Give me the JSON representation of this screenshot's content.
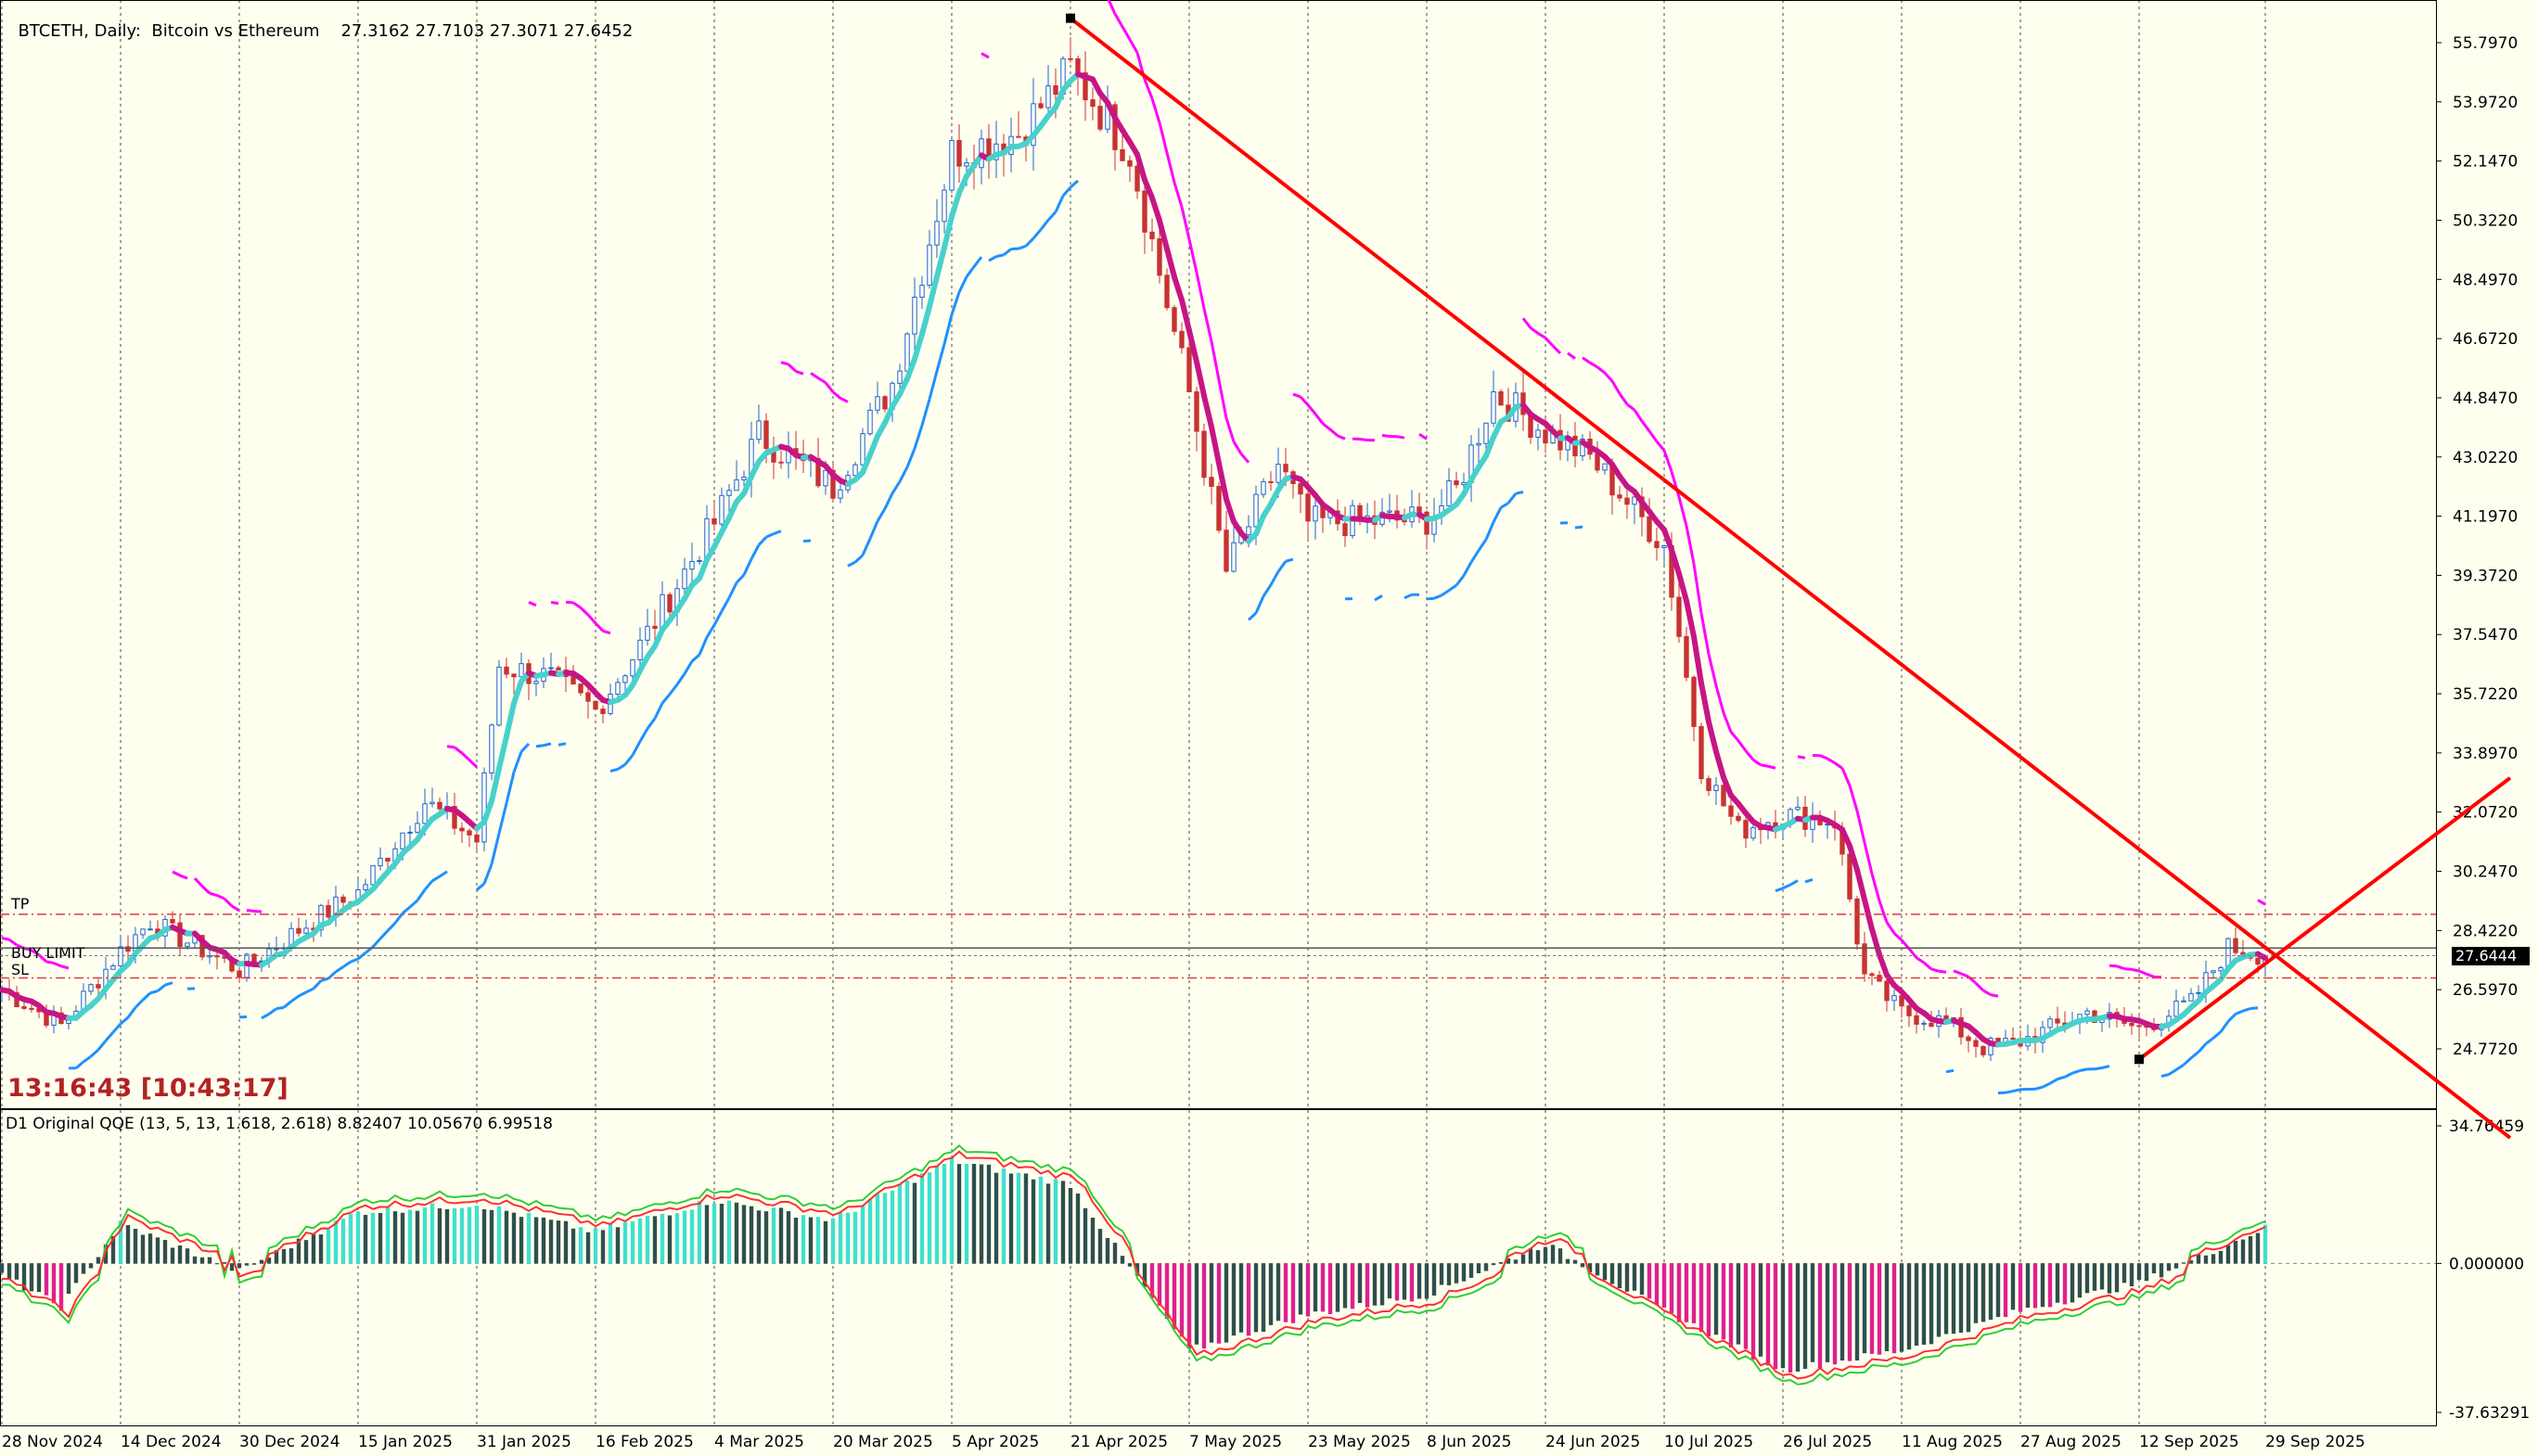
{
  "header": {
    "symbol_title": "BTCETH, Daily:  Bitcoin vs Ethereum",
    "ohlc": "27.3162 27.7103 27.3071 27.6452"
  },
  "timer": "13:16:43 [10:43:17]",
  "levels": {
    "tp_label": "TP",
    "buy_limit_label": "BUY LIMIT",
    "sl_label": "SL",
    "current_price_label": "27.6444"
  },
  "indicator": {
    "title": "D1 Original QQE (13, 5, 13, 1.618, 2.618) 8.82407 10.05670 6.99518"
  },
  "colors": {
    "background": "#fffff0",
    "grid": "#4a4a4a",
    "trendline": "#ff0000",
    "supertrend_up": "#1e90ff",
    "supertrend_down": "#ff00ff",
    "ma_bull": "#48d1cc",
    "ma_bear": "#c71585",
    "candle_bull": "#1e64c8",
    "candle_bear": "#c83232",
    "qqe_pos": "#40e0d0",
    "qqe_neg": "#e0208f",
    "qqe_neutral": "#2f4f4f",
    "qqe_line1": "#32cd32",
    "qqe_line2": "#ff3030",
    "level_line": "#dc3c3c",
    "current_price_box": "#000000"
  },
  "chart_data": [
    {
      "type": "candlestick",
      "title": "BTCETH, Daily: Bitcoin vs Ethereum",
      "price_axis_ticks": [
        "55.7970",
        "53.9720",
        "52.1470",
        "50.3220",
        "48.4970",
        "46.6720",
        "44.8470",
        "43.0220",
        "41.1970",
        "39.3720",
        "37.5470",
        "35.7220",
        "33.8970",
        "32.0720",
        "30.2470",
        "28.4220",
        "26.5970",
        "24.7720"
      ],
      "date_axis_ticks": [
        "28 Nov 2024",
        "14 Dec 2024",
        "30 Dec 2024",
        "15 Jan 2025",
        "31 Jan 2025",
        "16 Feb 2025",
        "4 Mar 2025",
        "20 Mar 2025",
        "5 Apr 2025",
        "21 Apr 2025",
        "7 May 2025",
        "23 May 2025",
        "8 Jun 2025",
        "24 Jun 2025",
        "10 Jul 2025",
        "26 Jul 2025",
        "11 Aug 2025",
        "27 Aug 2025",
        "12 Sep 2025",
        "29 Sep 2025"
      ],
      "ylim": [
        23.3,
        57.0
      ],
      "close_series": [
        {
          "date": "28 Nov 2024",
          "close": 26.6
        },
        {
          "date": "6 Dec 2024",
          "close": 25.5
        },
        {
          "date": "14 Dec 2024",
          "close": 27.8
        },
        {
          "date": "18 Dec 2024",
          "close": 28.7
        },
        {
          "date": "30 Dec 2024",
          "close": 27.2
        },
        {
          "date": "8 Jan 2025",
          "close": 28.6
        },
        {
          "date": "15 Jan 2025",
          "close": 29.6
        },
        {
          "date": "24 Jan 2025",
          "close": 32.4
        },
        {
          "date": "31 Jan 2025",
          "close": 31.2
        },
        {
          "date": "3 Feb 2025",
          "close": 36.6
        },
        {
          "date": "10 Feb 2025",
          "close": 36.2
        },
        {
          "date": "16 Feb 2025",
          "close": 35.2
        },
        {
          "date": "22 Feb 2025",
          "close": 37.2
        },
        {
          "date": "4 Mar 2025",
          "close": 41.0
        },
        {
          "date": "10 Mar 2025",
          "close": 43.7
        },
        {
          "date": "20 Mar 2025",
          "close": 42.1
        },
        {
          "date": "28 Mar 2025",
          "close": 45.3
        },
        {
          "date": "5 Apr 2025",
          "close": 52.4
        },
        {
          "date": "14 Apr 2025",
          "close": 53.0
        },
        {
          "date": "21 Apr 2025",
          "close": 55.0
        },
        {
          "date": "29 Apr 2025",
          "close": 52.4
        },
        {
          "date": "7 May 2025",
          "close": 45.0
        },
        {
          "date": "12 May 2025",
          "close": 39.5
        },
        {
          "date": "19 May 2025",
          "close": 42.8
        },
        {
          "date": "23 May 2025",
          "close": 41.0
        },
        {
          "date": "8 Jun 2025",
          "close": 41.1
        },
        {
          "date": "12 Jun 2025",
          "close": 42.0
        },
        {
          "date": "17 Jun 2025",
          "close": 45.0
        },
        {
          "date": "24 Jun 2025",
          "close": 43.8
        },
        {
          "date": "30 Jun 2025",
          "close": 43.0
        },
        {
          "date": "10 Jul 2025",
          "close": 40.3
        },
        {
          "date": "15 Jul 2025",
          "close": 33.5
        },
        {
          "date": "20 Jul 2025",
          "close": 31.5
        },
        {
          "date": "26 Jul 2025",
          "close": 32.0
        },
        {
          "date": "2 Aug 2025",
          "close": 31.8
        },
        {
          "date": "6 Aug 2025",
          "close": 27.0
        },
        {
          "date": "11 Aug 2025",
          "close": 25.9
        },
        {
          "date": "17 Aug 2025",
          "close": 25.6
        },
        {
          "date": "22 Aug 2025",
          "close": 24.8
        },
        {
          "date": "27 Aug 2025",
          "close": 25.0
        },
        {
          "date": "5 Sep 2025",
          "close": 25.9
        },
        {
          "date": "12 Sep 2025",
          "close": 25.4
        },
        {
          "date": "19 Sep 2025",
          "close": 26.2
        },
        {
          "date": "24 Sep 2025",
          "close": 27.9
        },
        {
          "date": "29 Sep 2025",
          "close": 27.6452
        }
      ],
      "overlays": {
        "tp": 28.92,
        "buy_limit": 27.88,
        "sl": 26.96,
        "current_price": 27.6444,
        "descending_trendline": [
          {
            "date": "21 Apr 2025",
            "price": 56.55
          },
          {
            "date": "29 Sep 2025",
            "price": 27.9
          }
        ],
        "ascending_trendline": [
          {
            "date": "12 Sep 2025",
            "price": 24.45
          },
          {
            "date": "29 Sep 2025",
            "price": 27.4
          }
        ]
      }
    },
    {
      "type": "histogram",
      "title": "D1 Original QQE (13, 5, 13, 1.618, 2.618) 8.82407 10.05670 6.99518",
      "axis_ticks": [
        "34.76459",
        "0.000000",
        "-37.63291"
      ],
      "ylim": [
        -37.63291,
        34.76459
      ],
      "series_values": [
        {
          "date": "28 Nov 2024",
          "value": -3
        },
        {
          "date": "6 Dec 2024",
          "value": -11
        },
        {
          "date": "14 Dec 2024",
          "value": 10
        },
        {
          "date": "30 Dec 2024",
          "value": -2
        },
        {
          "date": "15 Jan 2025",
          "value": 13
        },
        {
          "date": "31 Jan 2025",
          "value": 15
        },
        {
          "date": "16 Feb 2025",
          "value": 8
        },
        {
          "date": "4 Mar 2025",
          "value": 16
        },
        {
          "date": "20 Mar 2025",
          "value": 11
        },
        {
          "date": "5 Apr 2025",
          "value": 26
        },
        {
          "date": "21 Apr 2025",
          "value": 20
        },
        {
          "date": "7 May 2025",
          "value": -22
        },
        {
          "date": "23 May 2025",
          "value": -13
        },
        {
          "date": "8 Jun 2025",
          "value": -8
        },
        {
          "date": "24 Jun 2025",
          "value": 5
        },
        {
          "date": "10 Jul 2025",
          "value": -12
        },
        {
          "date": "26 Jul 2025",
          "value": -27
        },
        {
          "date": "11 Aug 2025",
          "value": -22
        },
        {
          "date": "27 Aug 2025",
          "value": -12
        },
        {
          "date": "12 Sep 2025",
          "value": -5
        },
        {
          "date": "29 Sep 2025",
          "value": 9
        }
      ]
    }
  ]
}
